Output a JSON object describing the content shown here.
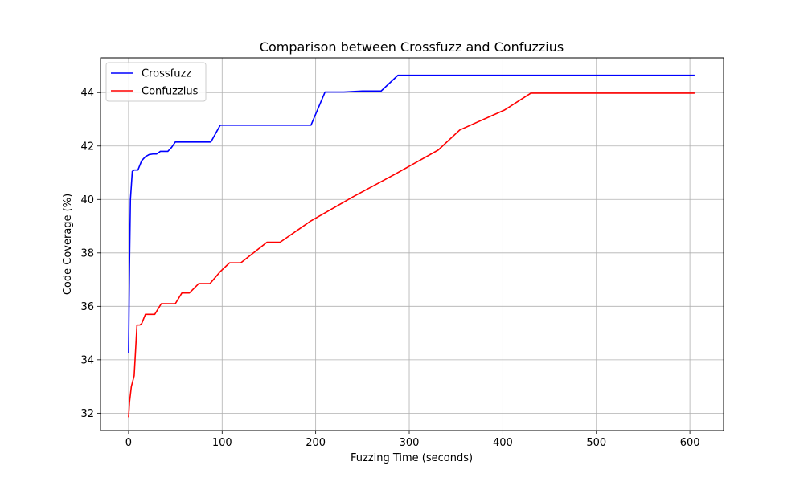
{
  "chart_data": {
    "type": "line",
    "title": "Comparison between Crossfuzz and Confuzzius",
    "xlabel": "Fuzzing Time (seconds)",
    "ylabel": "Code Coverage (%)",
    "xlim": [
      -30,
      636
    ],
    "ylim": [
      31.35,
      45.3
    ],
    "xticks": [
      0,
      100,
      200,
      300,
      400,
      500,
      600
    ],
    "yticks": [
      32,
      34,
      36,
      38,
      40,
      42,
      44
    ],
    "grid": true,
    "legend_position": "top-left",
    "series": [
      {
        "name": "Crossfuzz",
        "color": "#0000ff",
        "x": [
          0,
          1,
          2,
          4,
          6,
          8,
          10,
          14,
          18,
          22,
          26,
          30,
          34,
          38,
          42,
          46,
          50,
          88,
          98,
          195,
          210,
          230,
          250,
          270,
          288,
          605
        ],
        "y": [
          34.25,
          37.5,
          40.0,
          41.05,
          41.1,
          41.1,
          41.1,
          41.45,
          41.6,
          41.68,
          41.7,
          41.7,
          41.8,
          41.8,
          41.8,
          41.95,
          42.15,
          42.15,
          42.78,
          42.78,
          44.02,
          44.02,
          44.06,
          44.06,
          44.65,
          44.65
        ]
      },
      {
        "name": "Confuzzius",
        "color": "#ff0000",
        "x": [
          0,
          1,
          3,
          6,
          9,
          12,
          14,
          18,
          28,
          35,
          50,
          57,
          65,
          75,
          87,
          98,
          108,
          120,
          148,
          162,
          195,
          240,
          285,
          331,
          354,
          402,
          430,
          605
        ],
        "y": [
          31.85,
          32.4,
          33.0,
          33.4,
          35.3,
          35.3,
          35.35,
          35.7,
          35.7,
          36.1,
          36.1,
          36.5,
          36.5,
          36.85,
          36.85,
          37.3,
          37.63,
          37.63,
          38.4,
          38.4,
          39.2,
          40.1,
          40.95,
          41.85,
          42.6,
          43.35,
          43.98,
          43.98
        ]
      }
    ]
  }
}
